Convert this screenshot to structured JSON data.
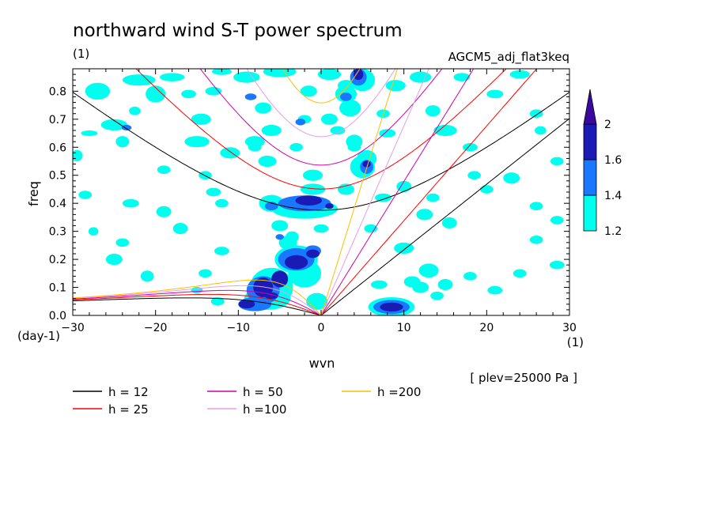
{
  "chart_data": {
    "type": "heatmap",
    "title": "northward wind S-T power spectrum",
    "unit_label": "(1)",
    "experiment_label": "AGCM5_adj_flat3keq",
    "plev_label": "[ plev=25000 Pa ]",
    "xlabel": "wvn",
    "x_unit": "(1)",
    "ylabel": "freq",
    "y_unit": "(day-1)",
    "xlim": [
      -30,
      30
    ],
    "ylim": [
      0,
      0.88
    ],
    "x_ticks": [
      "-30",
      "-20",
      "-10",
      "0",
      "10",
      "20",
      "30"
    ],
    "y_ticks": [
      "0.0",
      "0.1",
      "0.2",
      "0.3",
      "0.4",
      "0.5",
      "0.6",
      "0.7",
      "0.8"
    ],
    "colorbar": {
      "levels": [
        "1.2",
        "1.4",
        "1.6",
        "2"
      ],
      "colors": [
        "#00ffee",
        "#1a78ff",
        "#1a1ab4",
        "#3a0aa0"
      ],
      "extend": "max"
    },
    "dispersion_curves": [
      {
        "label": "h = 12",
        "h": 12,
        "color": "#000000"
      },
      {
        "label": "h = 25",
        "h": 25,
        "color": "#ff0000"
      },
      {
        "label": "h = 50",
        "h": 50,
        "color": "#d000a8"
      },
      {
        "label": "h =100",
        "h": 100,
        "color": "#e69ee6"
      },
      {
        "label": "h =200",
        "h": 200,
        "color": "#ffbe00"
      }
    ],
    "contour_regions": [
      {
        "level": "1.2",
        "note": "scattered patches across the domain"
      },
      {
        "level": "1.6",
        "note": "strong patches near wvn -8 to 2, freq 0.02-0.25"
      },
      {
        "level": "1.6",
        "note": "patch near wvn -3 to 1, freq 0.37-0.45"
      },
      {
        "level": "1.6",
        "note": "patch near wvn 7 to 11, freq 0.01-0.05"
      }
    ]
  }
}
